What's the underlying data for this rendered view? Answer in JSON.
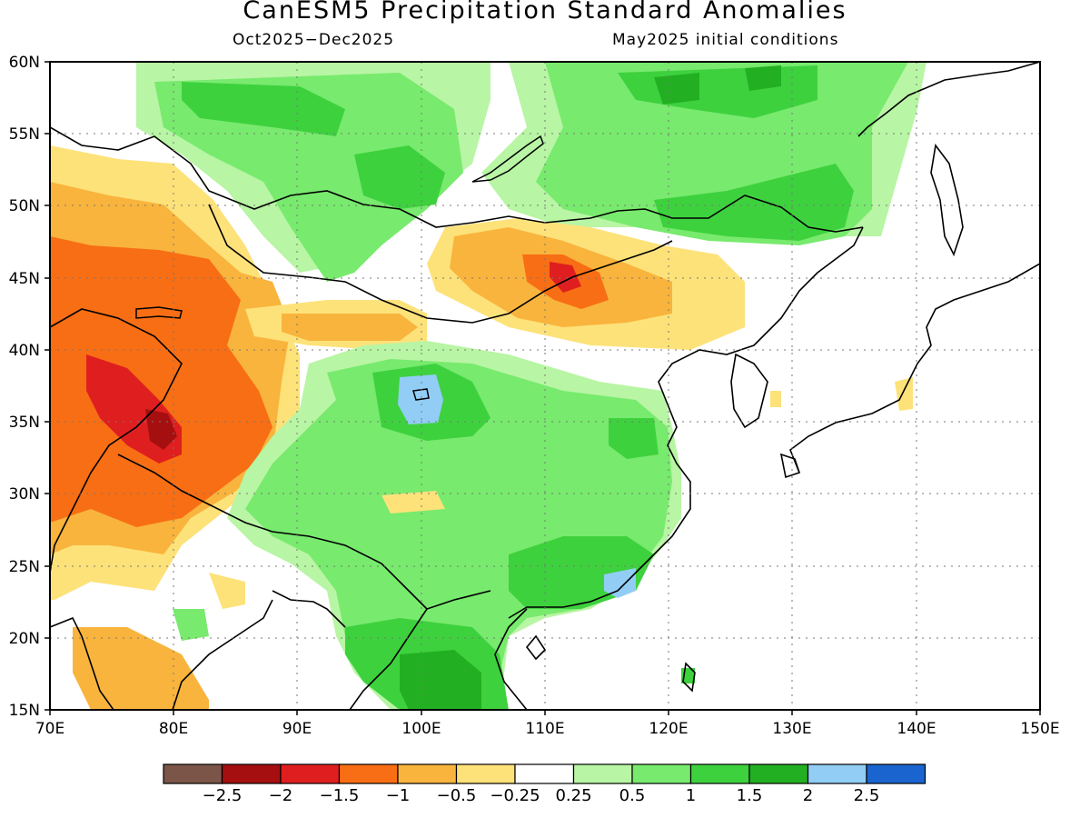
{
  "header": {
    "title": "CanESM5 Precipitation Standard Anomalies",
    "period": "Oct2025−Dec2025",
    "init": "May2025 initial conditions"
  },
  "axes": {
    "lon_labels": [
      "70E",
      "80E",
      "90E",
      "100E",
      "110E",
      "120E",
      "130E",
      "140E",
      "150E"
    ],
    "lat_labels": [
      "60N",
      "55N",
      "50N",
      "45N",
      "40N",
      "35N",
      "30N",
      "25N",
      "20N",
      "15N"
    ],
    "lon_range": [
      70,
      150
    ],
    "lat_range": [
      15,
      60
    ],
    "grid": "dotted"
  },
  "colorbar": {
    "colors": [
      "#7a5548",
      "#a50f0f",
      "#df1f1f",
      "#f86e14",
      "#f9b43d",
      "#fde27a",
      "#ffffff",
      "#b8f5a4",
      "#78ea6e",
      "#3ed13e",
      "#22b022",
      "#92cdf5",
      "#1a64cf"
    ],
    "labels": [
      "−2.5",
      "−2",
      "−1.5",
      "−1",
      "−0.5",
      "−0.25",
      "0.25",
      "0.5",
      "1",
      "1.5",
      "2",
      "2.5"
    ]
  },
  "colors": {
    "accent": "#000000"
  }
}
